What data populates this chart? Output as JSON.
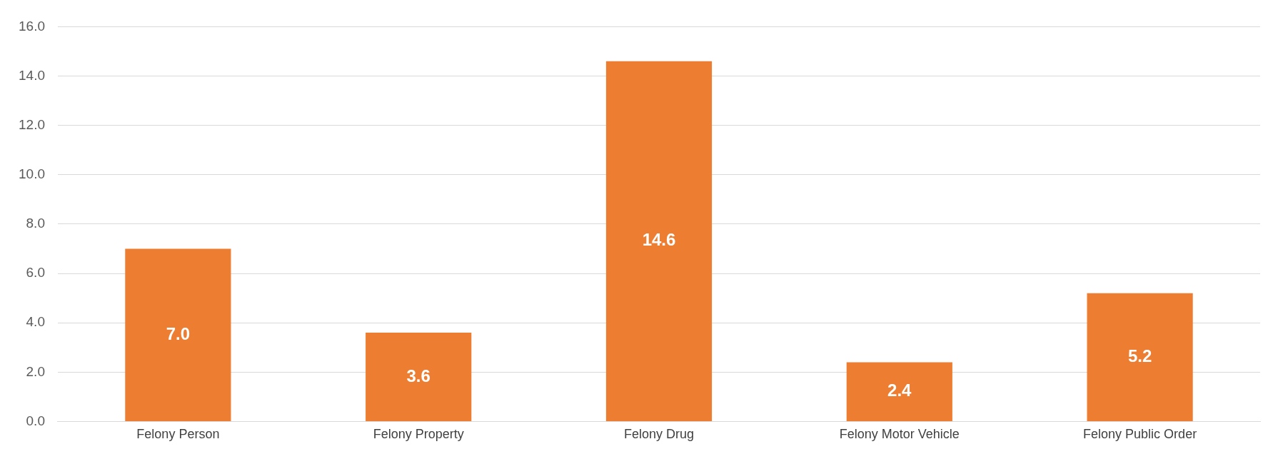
{
  "chart_data": {
    "type": "bar",
    "categories": [
      "Felony Person",
      "Felony Property",
      "Felony Drug",
      "Felony Motor Vehicle",
      "Felony Public Order"
    ],
    "values": [
      7.0,
      3.6,
      14.6,
      2.4,
      5.2
    ],
    "value_labels": [
      "7.0",
      "3.6",
      "14.6",
      "2.4",
      "5.2"
    ],
    "color": "#ed7d31",
    "ylim": [
      0,
      16
    ],
    "yticks": [
      {
        "value": 0,
        "label": "0.0"
      },
      {
        "value": 2,
        "label": "2.0"
      },
      {
        "value": 4,
        "label": "4.0"
      },
      {
        "value": 6,
        "label": "6.0"
      },
      {
        "value": 8,
        "label": "8.0"
      },
      {
        "value": 10,
        "label": "10.0"
      },
      {
        "value": 12,
        "label": "12.0"
      },
      {
        "value": 14,
        "label": "14.0"
      },
      {
        "value": 16,
        "label": "16.0"
      }
    ],
    "grid": "y",
    "legend": false
  }
}
